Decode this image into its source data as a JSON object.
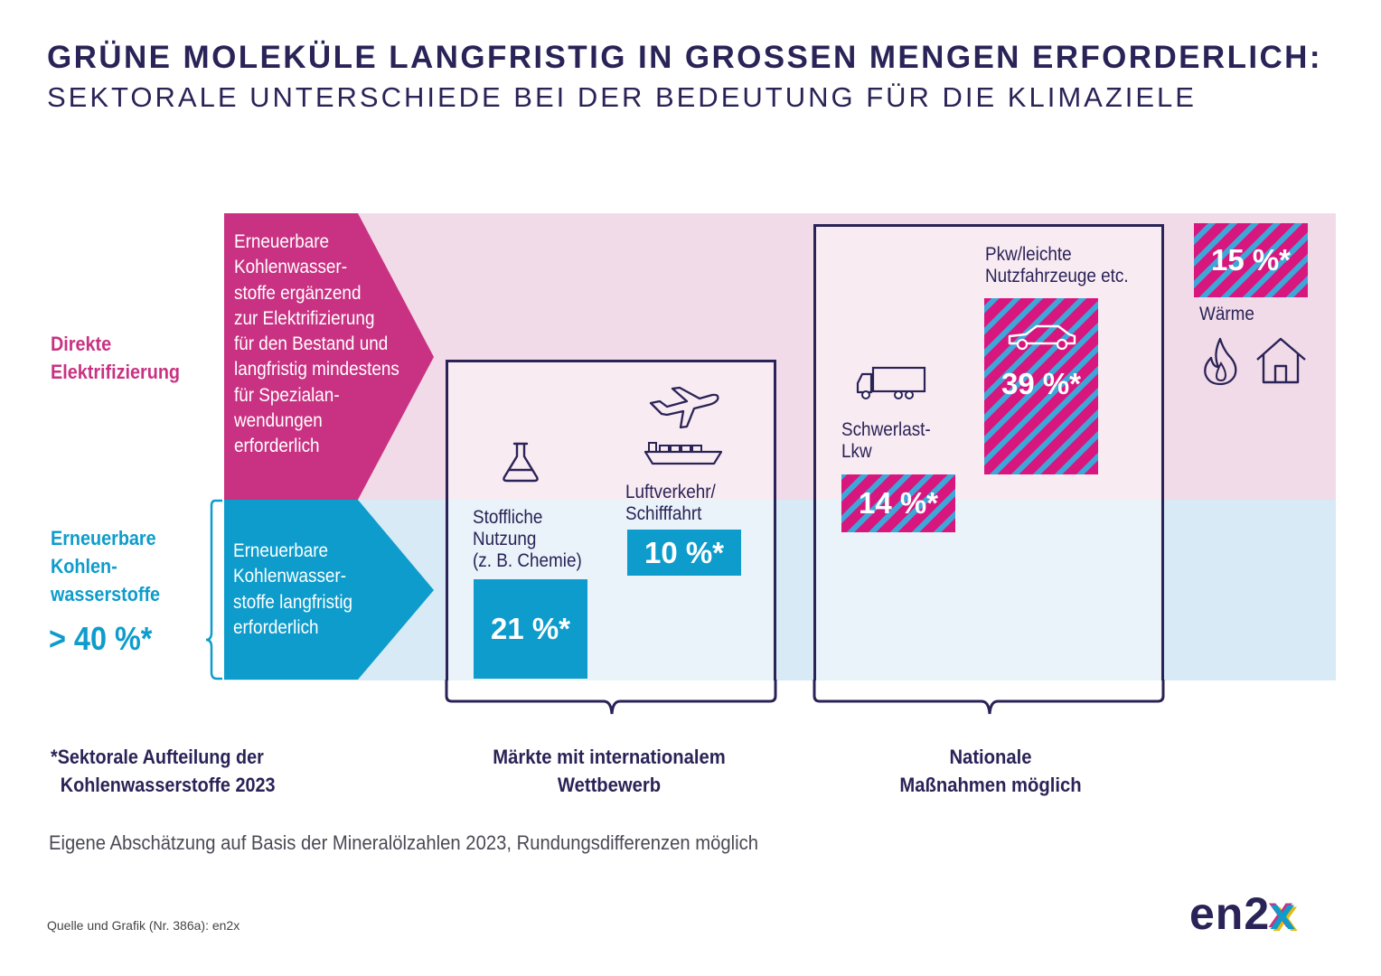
{
  "title": "GRÜNE MOLEKÜLE LANGFRISTIG IN GROSSEN MENGEN ERFORDERLICH:",
  "subtitle": "SEKTORALE UNTERSCHIEDE BEI DER BEDEUTUNG FÜR DIE KLIMAZIELE",
  "rows": {
    "direct": {
      "label_lines": [
        "Direkte",
        "Elektrifizierung"
      ],
      "arrow_text_lines": [
        "Erneuerbare",
        "Kohlenwasser-",
        "stoffe ergänzend",
        "zur Elektrifizierung",
        "für den Bestand und",
        "langfristig mindestens",
        "für Spezialan-",
        "wendungen",
        "erforderlich"
      ]
    },
    "hydrocarbons": {
      "label_lines": [
        "Erneuerbare",
        "Kohlen-",
        "wasserstoffe"
      ],
      "total": "> 40 %*",
      "arrow_text_lines": [
        "Erneuerbare",
        "Kohlenwasser-",
        "stoffe langfristig",
        "erforderlich"
      ]
    }
  },
  "sectors": {
    "chemie": {
      "label_lines": [
        "Stoffliche",
        "Nutzung",
        "(z. B. Chemie)"
      ],
      "value": "21 %*",
      "icon": "flask-icon"
    },
    "luftverkehr": {
      "label_lines": [
        "Luftverkehr/",
        "Schifffahrt"
      ],
      "value": "10 %*",
      "icons": [
        "airplane-icon",
        "ship-icon"
      ]
    },
    "lkw": {
      "label_lines": [
        "Schwerlast-",
        "Lkw"
      ],
      "value": "14 %*",
      "icon": "truck-icon"
    },
    "pkw": {
      "label_lines": [
        "Pkw/leichte",
        "Nutzfahrzeuge etc."
      ],
      "value": "39 %*",
      "icon": "car-icon"
    },
    "waerme": {
      "label": "Wärme",
      "value": "15 %*",
      "icons": [
        "flame-icon",
        "house-icon"
      ]
    }
  },
  "groups": {
    "international": [
      "Märkte mit internationalem",
      "Wettbewerb"
    ],
    "national": [
      "Nationale",
      "Maßnahmen möglich"
    ]
  },
  "footnote_lines": [
    "*Sektorale Aufteilung der",
    "Kohlenwasserstoffe 2023"
  ],
  "note": "Eigene Abschätzung auf Basis der Mineralölzahlen 2023, Rundungsdifferenzen möglich",
  "source": "Quelle und Grafik (Nr. 386a): en2x",
  "logo": {
    "main": "en2",
    "accent": "x"
  },
  "colors": {
    "navy": "#2a2357",
    "magenta": "#c93282",
    "cyan": "#0e9ccc",
    "pink_band": "#f2dbe8",
    "blue_band": "#d7eaf5"
  }
}
